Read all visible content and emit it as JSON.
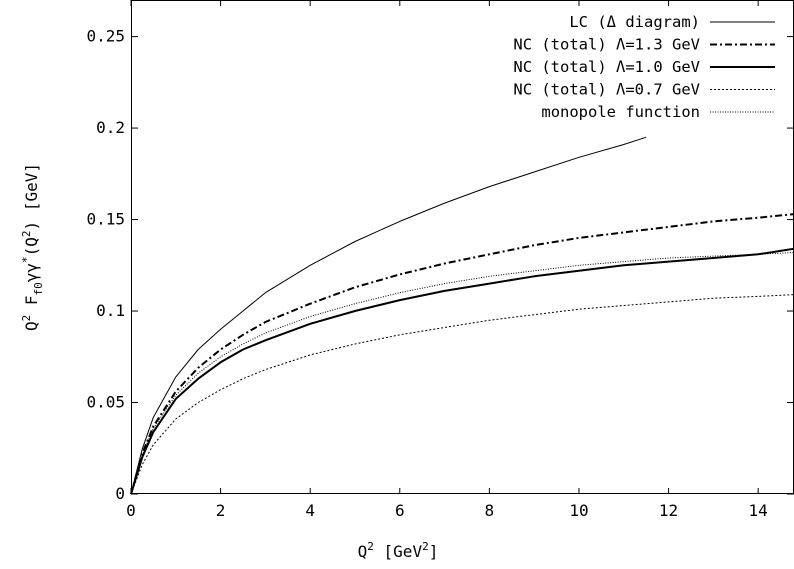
{
  "chart_data": {
    "type": "line",
    "xlabel": "Q^2  [GeV^2]",
    "ylabel": "Q^2 F_{f0 γγ*}(Q^2)   [GeV]",
    "xlim": [
      0,
      14.8
    ],
    "ylim": [
      0,
      0.27
    ],
    "x_ticks": [
      "0",
      "2",
      "4",
      "6",
      "8",
      "10",
      "12",
      "14"
    ],
    "y_ticks": [
      "0",
      "0.05",
      "0.1",
      "0.15",
      "0.2",
      "0.25"
    ],
    "legend_position": "top-right",
    "grid": false,
    "series": [
      {
        "name": "LC  (Δ diagram)",
        "style": "thin-solid",
        "x": [
          0,
          0.25,
          0.5,
          1,
          1.5,
          2,
          2.5,
          3,
          4,
          5,
          6,
          7,
          8,
          9,
          10,
          11,
          11.5
        ],
        "y": [
          0,
          0.0245,
          0.042,
          0.064,
          0.079,
          0.09,
          0.1,
          0.11,
          0.125,
          0.138,
          0.149,
          0.159,
          0.168,
          0.176,
          0.184,
          0.191,
          0.195
        ]
      },
      {
        "name": "NC (total) Λ=1.3 GeV",
        "style": "dash-dot",
        "x": [
          0,
          0.25,
          0.5,
          1,
          1.5,
          2,
          2.5,
          3,
          4,
          5,
          6,
          7,
          8,
          9,
          10,
          11,
          12,
          13,
          14,
          14.8
        ],
        "y": [
          0,
          0.022,
          0.037,
          0.056,
          0.069,
          0.079,
          0.087,
          0.094,
          0.104,
          0.113,
          0.12,
          0.126,
          0.131,
          0.136,
          0.14,
          0.143,
          0.146,
          0.149,
          0.151,
          0.153
        ]
      },
      {
        "name": "NC (total) Λ=1.0 GeV",
        "style": "thick-solid",
        "x": [
          0,
          0.25,
          0.5,
          1,
          1.5,
          2,
          2.5,
          3,
          4,
          5,
          6,
          7,
          8,
          9,
          10,
          11,
          12,
          13,
          14,
          14.8
        ],
        "y": [
          0,
          0.02,
          0.034,
          0.052,
          0.063,
          0.072,
          0.079,
          0.084,
          0.093,
          0.1,
          0.106,
          0.111,
          0.115,
          0.119,
          0.122,
          0.125,
          0.127,
          0.129,
          0.131,
          0.134
        ]
      },
      {
        "name": "NC (total) Λ=0.7 GeV",
        "style": "dotted",
        "x": [
          0,
          0.25,
          0.5,
          1,
          1.5,
          2,
          2.5,
          3,
          4,
          5,
          6,
          7,
          8,
          9,
          10,
          11,
          12,
          13,
          14,
          14.8
        ],
        "y": [
          0,
          0.016,
          0.027,
          0.041,
          0.05,
          0.057,
          0.063,
          0.068,
          0.076,
          0.082,
          0.087,
          0.091,
          0.095,
          0.098,
          0.101,
          0.103,
          0.105,
          0.107,
          0.108,
          0.109
        ]
      },
      {
        "name": "monopole function",
        "style": "fine-dotted",
        "x": [
          0,
          0.25,
          0.5,
          1,
          1.5,
          2,
          2.5,
          3,
          4,
          5,
          6,
          7,
          8,
          9,
          10,
          11,
          12,
          13,
          14,
          14.8
        ],
        "y": [
          0,
          0.021,
          0.036,
          0.054,
          0.066,
          0.075,
          0.082,
          0.088,
          0.097,
          0.104,
          0.11,
          0.115,
          0.119,
          0.122,
          0.125,
          0.127,
          0.129,
          0.13,
          0.131,
          0.132
        ]
      }
    ]
  }
}
